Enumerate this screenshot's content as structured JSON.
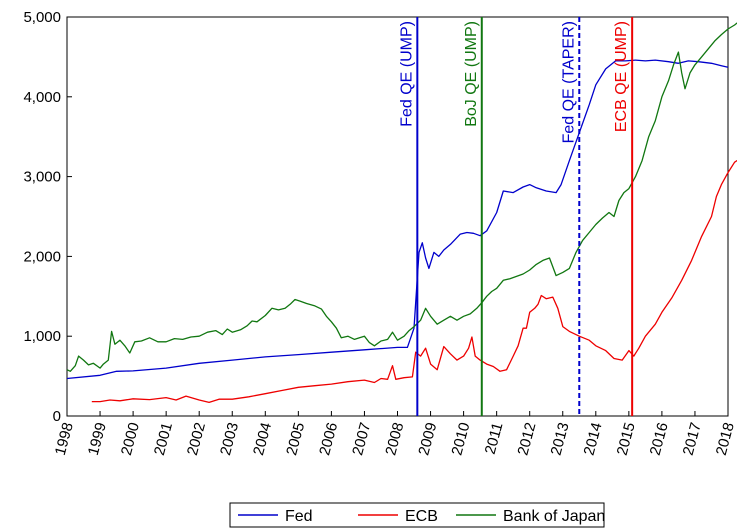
{
  "chart_data": {
    "type": "line",
    "title": "",
    "xlabel": "",
    "ylabel": "",
    "xlim": [
      1998.0,
      2018.0
    ],
    "ylim": [
      0,
      5000
    ],
    "yticks": [
      0,
      1000,
      2000,
      3000,
      4000,
      5000
    ],
    "ytick_labels": [
      "0",
      "1,000",
      "2,000",
      "3,000",
      "4,000",
      "5,000"
    ],
    "xticks": [
      1998,
      1999,
      2000,
      2001,
      2002,
      2003,
      2004,
      2005,
      2006,
      2007,
      2008,
      2009,
      2010,
      2011,
      2012,
      2013,
      2014,
      2015,
      2016,
      2017,
      2018
    ],
    "xtick_labels": [
      "1998",
      "1999",
      "2000",
      "2001",
      "2002",
      "2003",
      "2004",
      "2005",
      "2006",
      "2007",
      "2008",
      "2009",
      "2010",
      "2011",
      "2012",
      "2013",
      "2014",
      "2015",
      "2016",
      "2017",
      "2018"
    ],
    "grid": false,
    "legend": "bottom",
    "series": [
      {
        "name": "Fed",
        "color": "#0000cc",
        "points": [
          [
            1998.0,
            470
          ],
          [
            1999.0,
            510
          ],
          [
            1999.5,
            560
          ],
          [
            2000.0,
            565
          ],
          [
            2001.0,
            600
          ],
          [
            2002.0,
            660
          ],
          [
            2003.0,
            700
          ],
          [
            2004.0,
            740
          ],
          [
            2005.0,
            770
          ],
          [
            2006.0,
            800
          ],
          [
            2007.0,
            830
          ],
          [
            2008.0,
            860
          ],
          [
            2008.3,
            860
          ],
          [
            2008.5,
            1100
          ],
          [
            2008.65,
            2050
          ],
          [
            2008.75,
            2170
          ],
          [
            2008.85,
            1980
          ],
          [
            2008.95,
            1850
          ],
          [
            2009.1,
            2050
          ],
          [
            2009.25,
            2000
          ],
          [
            2009.4,
            2080
          ],
          [
            2009.6,
            2150
          ],
          [
            2009.9,
            2280
          ],
          [
            2010.1,
            2300
          ],
          [
            2010.3,
            2290
          ],
          [
            2010.5,
            2260
          ],
          [
            2010.7,
            2320
          ],
          [
            2011.0,
            2550
          ],
          [
            2011.2,
            2820
          ],
          [
            2011.5,
            2800
          ],
          [
            2011.8,
            2870
          ],
          [
            2012.0,
            2900
          ],
          [
            2012.2,
            2860
          ],
          [
            2012.5,
            2820
          ],
          [
            2012.8,
            2800
          ],
          [
            2012.95,
            2900
          ],
          [
            2013.2,
            3200
          ],
          [
            2013.5,
            3550
          ],
          [
            2013.8,
            3900
          ],
          [
            2014.0,
            4150
          ],
          [
            2014.3,
            4350
          ],
          [
            2014.6,
            4450
          ],
          [
            2014.9,
            4450
          ],
          [
            2015.2,
            4460
          ],
          [
            2015.5,
            4450
          ],
          [
            2015.8,
            4460
          ],
          [
            2016.2,
            4440
          ],
          [
            2016.5,
            4420
          ],
          [
            2016.8,
            4450
          ],
          [
            2017.1,
            4440
          ],
          [
            2017.5,
            4420
          ],
          [
            2017.8,
            4390
          ],
          [
            2018.0,
            4370
          ]
        ]
      },
      {
        "name": "ECB",
        "color": "#ee0000",
        "points": [
          [
            1998.75,
            180
          ],
          [
            1999.0,
            180
          ],
          [
            1999.3,
            200
          ],
          [
            1999.6,
            190
          ],
          [
            2000.0,
            215
          ],
          [
            2000.5,
            205
          ],
          [
            2001.0,
            230
          ],
          [
            2001.3,
            200
          ],
          [
            2001.6,
            250
          ],
          [
            2002.0,
            200
          ],
          [
            2002.3,
            170
          ],
          [
            2002.6,
            210
          ],
          [
            2003.0,
            210
          ],
          [
            2003.5,
            240
          ],
          [
            2004.0,
            280
          ],
          [
            2004.5,
            320
          ],
          [
            2005.0,
            360
          ],
          [
            2005.5,
            380
          ],
          [
            2006.0,
            400
          ],
          [
            2006.5,
            430
          ],
          [
            2007.0,
            450
          ],
          [
            2007.3,
            420
          ],
          [
            2007.5,
            470
          ],
          [
            2007.7,
            460
          ],
          [
            2007.85,
            630
          ],
          [
            2007.95,
            460
          ],
          [
            2008.2,
            480
          ],
          [
            2008.45,
            490
          ],
          [
            2008.55,
            800
          ],
          [
            2008.7,
            750
          ],
          [
            2008.85,
            850
          ],
          [
            2009.0,
            650
          ],
          [
            2009.2,
            580
          ],
          [
            2009.4,
            870
          ],
          [
            2009.6,
            780
          ],
          [
            2009.8,
            700
          ],
          [
            2010.0,
            750
          ],
          [
            2010.15,
            850
          ],
          [
            2010.25,
            990
          ],
          [
            2010.35,
            750
          ],
          [
            2010.5,
            700
          ],
          [
            2010.7,
            650
          ],
          [
            2010.9,
            620
          ],
          [
            2011.1,
            560
          ],
          [
            2011.3,
            580
          ],
          [
            2011.5,
            750
          ],
          [
            2011.65,
            880
          ],
          [
            2011.8,
            1100
          ],
          [
            2011.9,
            1100
          ],
          [
            2012.0,
            1300
          ],
          [
            2012.15,
            1350
          ],
          [
            2012.25,
            1400
          ],
          [
            2012.35,
            1510
          ],
          [
            2012.5,
            1470
          ],
          [
            2012.7,
            1490
          ],
          [
            2012.85,
            1350
          ],
          [
            2013.0,
            1120
          ],
          [
            2013.2,
            1060
          ],
          [
            2013.5,
            1000
          ],
          [
            2013.8,
            950
          ],
          [
            2014.0,
            880
          ],
          [
            2014.3,
            820
          ],
          [
            2014.55,
            720
          ],
          [
            2014.8,
            700
          ],
          [
            2015.0,
            820
          ],
          [
            2015.15,
            750
          ],
          [
            2015.3,
            850
          ],
          [
            2015.5,
            1000
          ],
          [
            2015.8,
            1150
          ],
          [
            2016.0,
            1300
          ],
          [
            2016.3,
            1480
          ],
          [
            2016.6,
            1700
          ],
          [
            2016.9,
            1950
          ],
          [
            2017.2,
            2250
          ],
          [
            2017.5,
            2500
          ],
          [
            2017.65,
            2750
          ],
          [
            2017.8,
            2900
          ],
          [
            2018.0,
            3050
          ],
          [
            2018.2,
            3180
          ],
          [
            2018.35,
            3220
          ]
        ]
      },
      {
        "name": "Bank of Japan",
        "color": "#117711",
        "points": [
          [
            1998.0,
            580
          ],
          [
            1998.1,
            560
          ],
          [
            1998.25,
            630
          ],
          [
            1998.35,
            750
          ],
          [
            1998.5,
            700
          ],
          [
            1998.65,
            640
          ],
          [
            1998.8,
            660
          ],
          [
            1999.0,
            600
          ],
          [
            1999.1,
            650
          ],
          [
            1999.25,
            700
          ],
          [
            1999.35,
            1060
          ],
          [
            1999.45,
            900
          ],
          [
            1999.6,
            950
          ],
          [
            1999.75,
            880
          ],
          [
            1999.9,
            790
          ],
          [
            2000.05,
            930
          ],
          [
            2000.25,
            940
          ],
          [
            2000.5,
            980
          ],
          [
            2000.75,
            930
          ],
          [
            2001.0,
            930
          ],
          [
            2001.25,
            970
          ],
          [
            2001.5,
            960
          ],
          [
            2001.75,
            990
          ],
          [
            2002.0,
            1000
          ],
          [
            2002.25,
            1050
          ],
          [
            2002.5,
            1070
          ],
          [
            2002.7,
            1020
          ],
          [
            2002.85,
            1090
          ],
          [
            2003.0,
            1050
          ],
          [
            2003.25,
            1080
          ],
          [
            2003.45,
            1130
          ],
          [
            2003.6,
            1190
          ],
          [
            2003.75,
            1180
          ],
          [
            2004.0,
            1260
          ],
          [
            2004.2,
            1350
          ],
          [
            2004.4,
            1330
          ],
          [
            2004.6,
            1350
          ],
          [
            2004.75,
            1400
          ],
          [
            2004.9,
            1460
          ],
          [
            2005.05,
            1440
          ],
          [
            2005.25,
            1410
          ],
          [
            2005.5,
            1380
          ],
          [
            2005.7,
            1340
          ],
          [
            2005.85,
            1250
          ],
          [
            2006.0,
            1180
          ],
          [
            2006.15,
            1100
          ],
          [
            2006.3,
            980
          ],
          [
            2006.5,
            1000
          ],
          [
            2006.7,
            960
          ],
          [
            2006.85,
            980
          ],
          [
            2007.0,
            1000
          ],
          [
            2007.15,
            920
          ],
          [
            2007.3,
            880
          ],
          [
            2007.5,
            940
          ],
          [
            2007.7,
            960
          ],
          [
            2007.85,
            1050
          ],
          [
            2008.0,
            950
          ],
          [
            2008.2,
            1000
          ],
          [
            2008.35,
            1070
          ],
          [
            2008.5,
            1120
          ],
          [
            2008.7,
            1200
          ],
          [
            2008.85,
            1350
          ],
          [
            2009.0,
            1250
          ],
          [
            2009.2,
            1150
          ],
          [
            2009.4,
            1200
          ],
          [
            2009.6,
            1250
          ],
          [
            2009.8,
            1200
          ],
          [
            2010.0,
            1250
          ],
          [
            2010.2,
            1280
          ],
          [
            2010.4,
            1350
          ],
          [
            2010.55,
            1420
          ],
          [
            2010.7,
            1500
          ],
          [
            2010.85,
            1560
          ],
          [
            2011.0,
            1600
          ],
          [
            2011.2,
            1700
          ],
          [
            2011.4,
            1720
          ],
          [
            2011.6,
            1750
          ],
          [
            2011.8,
            1780
          ],
          [
            2012.0,
            1830
          ],
          [
            2012.2,
            1900
          ],
          [
            2012.4,
            1950
          ],
          [
            2012.6,
            1980
          ],
          [
            2012.8,
            1760
          ],
          [
            2013.0,
            1800
          ],
          [
            2013.2,
            1850
          ],
          [
            2013.4,
            2050
          ],
          [
            2013.6,
            2200
          ],
          [
            2013.8,
            2300
          ],
          [
            2014.0,
            2400
          ],
          [
            2014.2,
            2480
          ],
          [
            2014.4,
            2550
          ],
          [
            2014.55,
            2500
          ],
          [
            2014.7,
            2700
          ],
          [
            2014.85,
            2800
          ],
          [
            2015.0,
            2850
          ],
          [
            2015.2,
            3000
          ],
          [
            2015.4,
            3200
          ],
          [
            2015.6,
            3500
          ],
          [
            2015.8,
            3700
          ],
          [
            2016.0,
            4000
          ],
          [
            2016.2,
            4200
          ],
          [
            2016.35,
            4400
          ],
          [
            2016.5,
            4560
          ],
          [
            2016.6,
            4300
          ],
          [
            2016.7,
            4100
          ],
          [
            2016.85,
            4300
          ],
          [
            2017.0,
            4400
          ],
          [
            2017.2,
            4500
          ],
          [
            2017.4,
            4600
          ],
          [
            2017.6,
            4700
          ],
          [
            2017.8,
            4780
          ],
          [
            2018.0,
            4850
          ],
          [
            2018.2,
            4900
          ],
          [
            2018.35,
            4950
          ]
        ]
      }
    ],
    "vlines": [
      {
        "x": 2008.6,
        "label": "Fed QE (UMP)",
        "color": "#0000cc",
        "dashed": false
      },
      {
        "x": 2010.55,
        "label": "BoJ QE (UMP)",
        "color": "#117711",
        "dashed": false
      },
      {
        "x": 2013.5,
        "label": "Fed QE (TAPER)",
        "color": "#0000cc",
        "dashed": true
      },
      {
        "x": 2015.1,
        "label": "ECB QE (UMP)",
        "color": "#ee0000",
        "dashed": false
      }
    ]
  }
}
